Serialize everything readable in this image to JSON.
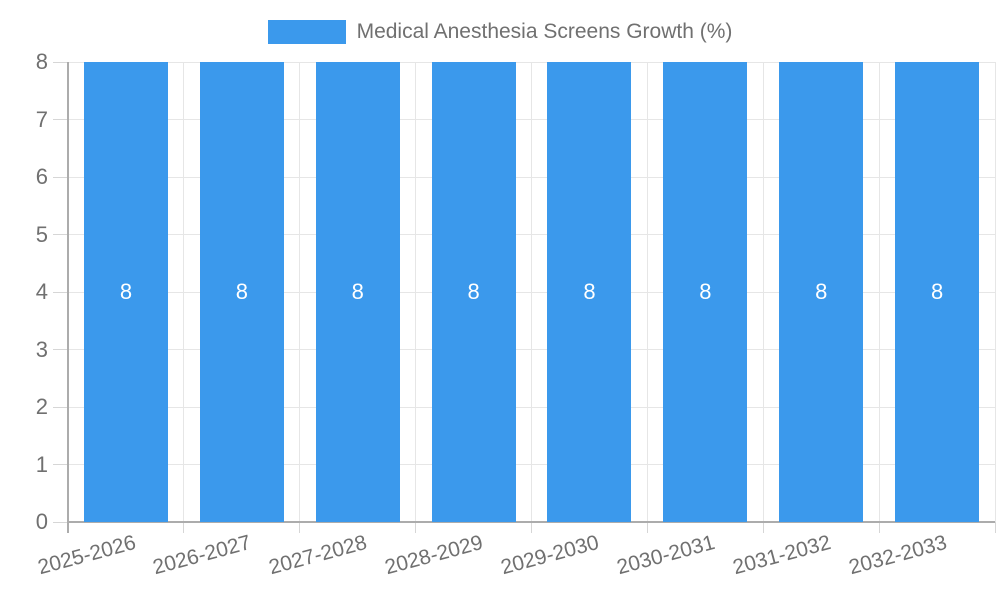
{
  "legend": {
    "label": "Medical Anesthesia Screens Growth (%)"
  },
  "chart_data": {
    "type": "bar",
    "title": "Medical Anesthesia Screens Growth (%)",
    "categories": [
      "2025-2026",
      "2026-2027",
      "2027-2028",
      "2028-2029",
      "2029-2030",
      "2030-2031",
      "2031-2032",
      "2032-2033"
    ],
    "series": [
      {
        "name": "Medical Anesthesia Screens Growth (%)",
        "values": [
          8,
          8,
          8,
          8,
          8,
          8,
          8,
          8
        ]
      }
    ],
    "bar_labels": [
      "8",
      "8",
      "8",
      "8",
      "8",
      "8",
      "8",
      "8"
    ],
    "xlabel": "",
    "ylabel": "",
    "ylim": [
      0,
      8
    ],
    "yticks": [
      0,
      1,
      2,
      3,
      4,
      5,
      6,
      7,
      8
    ],
    "grid": true,
    "legend_position": "top",
    "colors": {
      "bar": "#3B99EC",
      "bar_label": "#FFFFFF",
      "tick_text": "#707070",
      "grid": "#E6E6E6",
      "axis": "#ACACAC",
      "tick_mark": "#D6D6D6",
      "background": "#FFFFFF"
    }
  }
}
